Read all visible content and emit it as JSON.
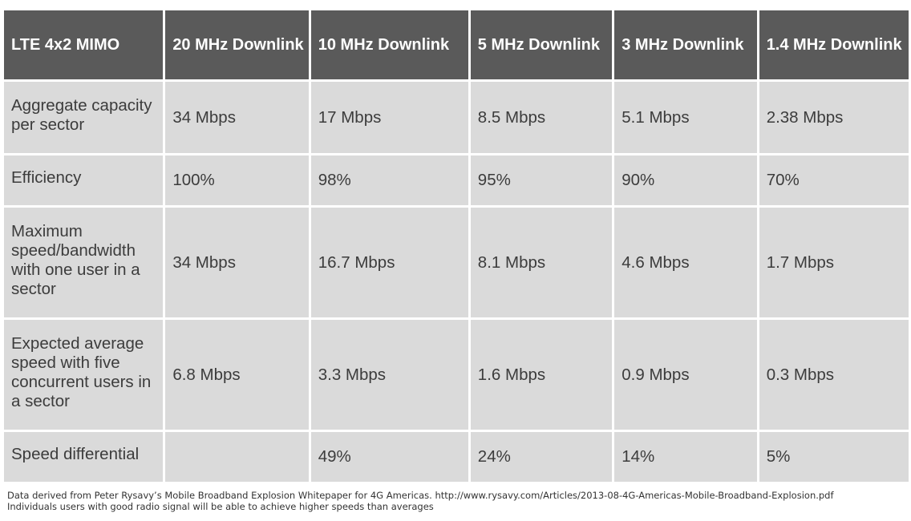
{
  "table": {
    "headers": [
      "LTE 4x2 MIMO",
      "20 MHz Downlink",
      "10 MHz Downlink",
      "5 MHz Downlink",
      "3 MHz Downlink",
      "1.4 MHz Downlink"
    ],
    "rows": [
      {
        "label": "Aggregate capacity per sector",
        "cells": [
          "34 Mbps",
          "17 Mbps",
          "8.5 Mbps",
          "5.1 Mbps",
          "2.38 Mbps"
        ]
      },
      {
        "label": "Efficiency",
        "cells": [
          "100%",
          "98%",
          "95%",
          "90%",
          "70%"
        ]
      },
      {
        "label": "Maximum speed/bandwidth with one user in a sector",
        "cells": [
          "34 Mbps",
          "16.7 Mbps",
          "8.1 Mbps",
          "4.6 Mbps",
          "1.7 Mbps"
        ]
      },
      {
        "label": "Expected average speed with five concurrent users in a sector",
        "cells": [
          "6.8 Mbps",
          "3.3 Mbps",
          "1.6 Mbps",
          "0.9 Mbps",
          "0.3 Mbps"
        ]
      },
      {
        "label": "Speed differential",
        "cells": [
          "",
          "49%",
          "24%",
          "14%",
          "5%"
        ]
      }
    ]
  },
  "footnotes": [
    "Data derived from Peter Rysavy’s Mobile Broadband Explosion Whitepaper for 4G Americas. http://www.rysavy.com/Articles/2013-08-4G-Americas-Mobile-Broadband-Explosion.pdf",
    "Individuals users with good radio signal will be able to achieve higher speeds than averages"
  ],
  "colors": {
    "header_bg": "#5a5a5a",
    "header_text": "#ffffff",
    "cell_bg": "#dadada",
    "cell_text": "#3c3c3c"
  }
}
